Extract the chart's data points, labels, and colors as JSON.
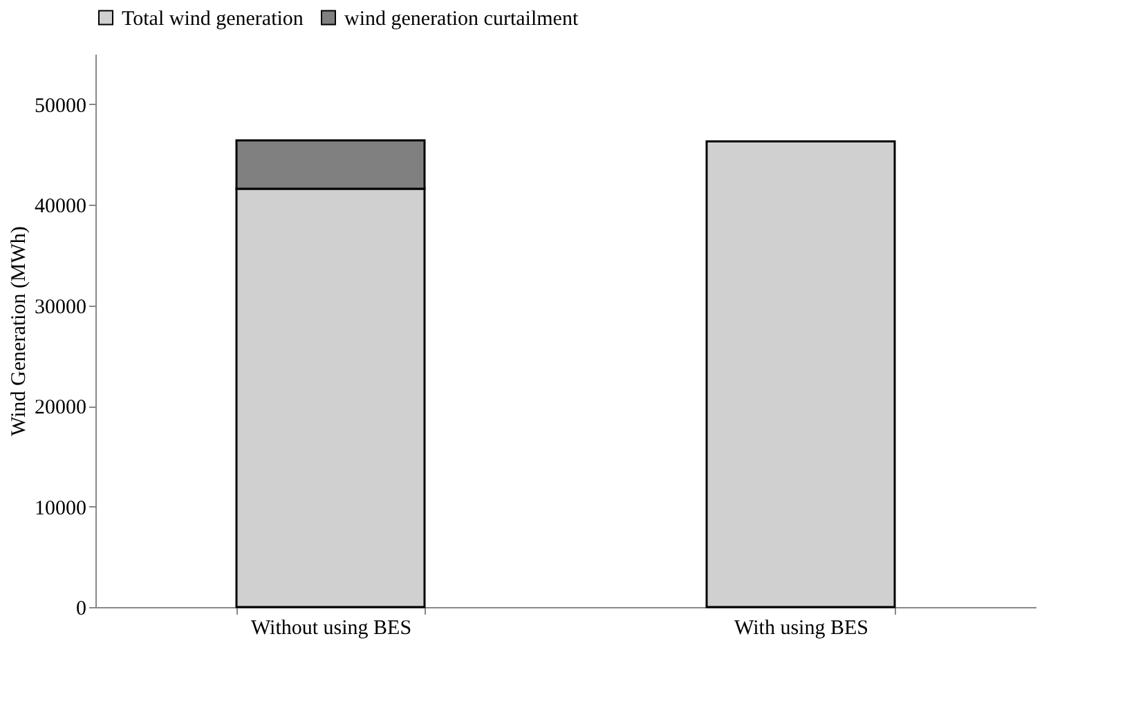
{
  "chart_data": {
    "type": "bar",
    "stacked": true,
    "ylabel": "Wind Generation (MWh)",
    "categories": [
      "Without using BES",
      "With using BES"
    ],
    "series": [
      {
        "name": "Total wind generation",
        "color": "#d0d0d0",
        "values": [
          41600,
          46300
        ]
      },
      {
        "name": "wind generation curtailment",
        "color": "#808080",
        "values": [
          4800,
          null
        ]
      }
    ],
    "ylim": [
      0,
      55000
    ],
    "yticks": [
      0,
      10000,
      20000,
      30000,
      40000,
      50000
    ],
    "grid": false,
    "legend": "top"
  }
}
